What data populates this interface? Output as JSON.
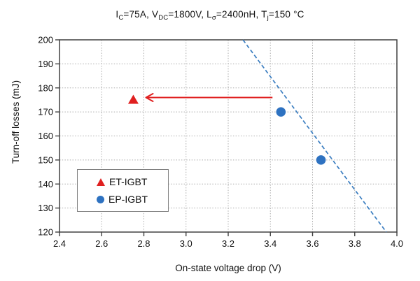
{
  "title_segments": [
    {
      "text": "I"
    },
    {
      "text": "C",
      "sub": true
    },
    {
      "text": "=75A, V"
    },
    {
      "text": "DC",
      "sub": true
    },
    {
      "text": "=1800V, L"
    },
    {
      "text": "σ",
      "sub": true
    },
    {
      "text": "=2400nH, T"
    },
    {
      "text": "j",
      "sub": true
    },
    {
      "text": "=150 °C"
    }
  ],
  "chart_data": {
    "type": "scatter",
    "title": "IC=75A, VDC=1800V, Lσ=2400nH, Tj=150 °C",
    "xlabel": "On-state voltage drop (V)",
    "ylabel": "Turn-off losses (mJ)",
    "xlim": [
      2.4,
      4.0
    ],
    "xtick_step": 0.2,
    "ylim": [
      120,
      200
    ],
    "ytick_step": 10,
    "grid": "dotted",
    "legend_position": "lower-left",
    "series": [
      {
        "name": "ET-IGBT",
        "marker": "triangle",
        "color": "#e02020",
        "points": [
          [
            2.75,
            175
          ]
        ]
      },
      {
        "name": "EP-IGBT",
        "marker": "circle",
        "color": "#2e72c1",
        "points": [
          [
            3.45,
            170
          ],
          [
            3.64,
            150
          ]
        ]
      }
    ],
    "trendline": {
      "for_series": "EP-IGBT",
      "style": "dashed",
      "color": "#3a7dc0",
      "from": [
        3.27,
        200
      ],
      "to": [
        3.95,
        120
      ]
    },
    "arrow": {
      "color": "#e02020",
      "from": [
        3.41,
        176
      ],
      "to": [
        2.81,
        176
      ]
    },
    "colors": {
      "axis_box": "#404040",
      "gridline": "#ababab",
      "text": "#111111"
    }
  }
}
